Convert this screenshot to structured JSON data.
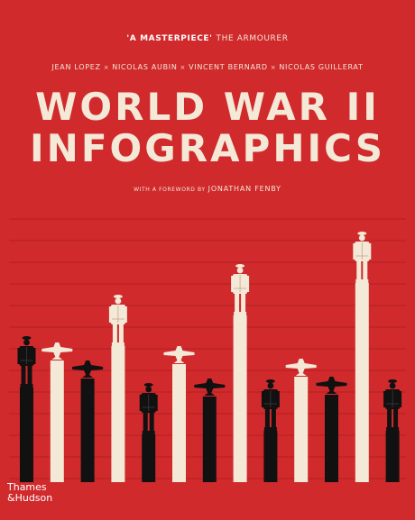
{
  "quote": {
    "text": "'A MASTERPIECE'",
    "source": "THE ARMOURER"
  },
  "authors": [
    "JEAN LOPEZ",
    "NICOLAS AUBIN",
    "VINCENT BERNARD",
    "NICOLAS GUILLERAT"
  ],
  "author_separator": "×",
  "title_line1": "WORLD WAR II",
  "title_line2": "INFOGRAPHICS",
  "foreword_prefix": "WITH A FOREWORD BY",
  "foreword_name": "JONATHAN FENBY",
  "publisher_line1": "Thames",
  "publisher_line2": "&Hudson",
  "colors": {
    "background": "#d02a2d",
    "cream": "#f4e8d7",
    "black": "#111111",
    "gridline": "#b51f24"
  },
  "illustration": {
    "bars": [
      {
        "color": "black",
        "icon": "soldier",
        "level": 0.4
      },
      {
        "color": "cream",
        "icon": "plane",
        "level": 0.55
      },
      {
        "color": "black",
        "icon": "plane",
        "level": 0.45
      },
      {
        "color": "cream",
        "icon": "soldier",
        "level": 0.63
      },
      {
        "color": "black",
        "icon": "soldier",
        "level": 0.14
      },
      {
        "color": "cream",
        "icon": "plane",
        "level": 0.53
      },
      {
        "color": "black",
        "icon": "plane",
        "level": 0.35
      },
      {
        "color": "cream",
        "icon": "soldier",
        "level": 0.8
      },
      {
        "color": "black",
        "icon": "soldier",
        "level": 0.16
      },
      {
        "color": "cream",
        "icon": "plane",
        "level": 0.46
      },
      {
        "color": "black",
        "icon": "plane",
        "level": 0.36
      },
      {
        "color": "cream",
        "icon": "soldier",
        "level": 0.98
      },
      {
        "color": "black",
        "icon": "soldier",
        "level": 0.16
      }
    ]
  }
}
